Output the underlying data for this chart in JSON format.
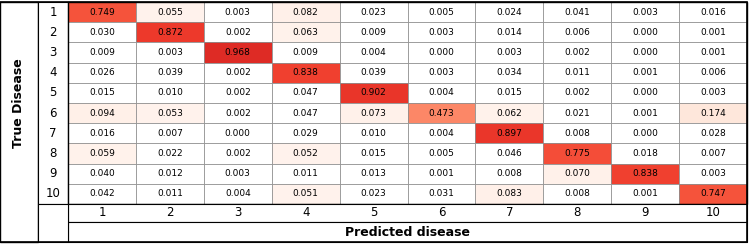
{
  "matrix": [
    [
      0.749,
      0.055,
      0.003,
      0.082,
      0.023,
      0.005,
      0.024,
      0.041,
      0.003,
      0.016
    ],
    [
      0.03,
      0.872,
      0.002,
      0.063,
      0.009,
      0.003,
      0.014,
      0.006,
      0.0,
      0.001
    ],
    [
      0.009,
      0.003,
      0.968,
      0.009,
      0.004,
      0.0,
      0.003,
      0.002,
      0.0,
      0.001
    ],
    [
      0.026,
      0.039,
      0.002,
      0.838,
      0.039,
      0.003,
      0.034,
      0.011,
      0.001,
      0.006
    ],
    [
      0.015,
      0.01,
      0.002,
      0.047,
      0.902,
      0.004,
      0.015,
      0.002,
      0.0,
      0.003
    ],
    [
      0.094,
      0.053,
      0.002,
      0.047,
      0.073,
      0.473,
      0.062,
      0.021,
      0.001,
      0.174
    ],
    [
      0.016,
      0.007,
      0.0,
      0.029,
      0.01,
      0.004,
      0.897,
      0.008,
      0.0,
      0.028
    ],
    [
      0.059,
      0.022,
      0.002,
      0.052,
      0.015,
      0.005,
      0.046,
      0.775,
      0.018,
      0.007
    ],
    [
      0.04,
      0.012,
      0.003,
      0.011,
      0.013,
      0.001,
      0.008,
      0.07,
      0.838,
      0.003
    ],
    [
      0.042,
      0.011,
      0.004,
      0.051,
      0.023,
      0.031,
      0.083,
      0.008,
      0.001,
      0.747
    ]
  ],
  "row_labels": [
    "1",
    "2",
    "3",
    "4",
    "5",
    "6",
    "7",
    "8",
    "9",
    "10"
  ],
  "col_labels": [
    "1",
    "2",
    "3",
    "4",
    "5",
    "6",
    "7",
    "8",
    "9",
    "10"
  ],
  "ylabel": "True Disease",
  "xlabel": "Predicted disease",
  "cell_font_size": 6.5,
  "label_font_size": 8.5,
  "axis_label_font_size": 9,
  "border_color": "#000000",
  "grid_color": "#888888",
  "bg_color": "#ffffff",
  "text_color": "#000000"
}
